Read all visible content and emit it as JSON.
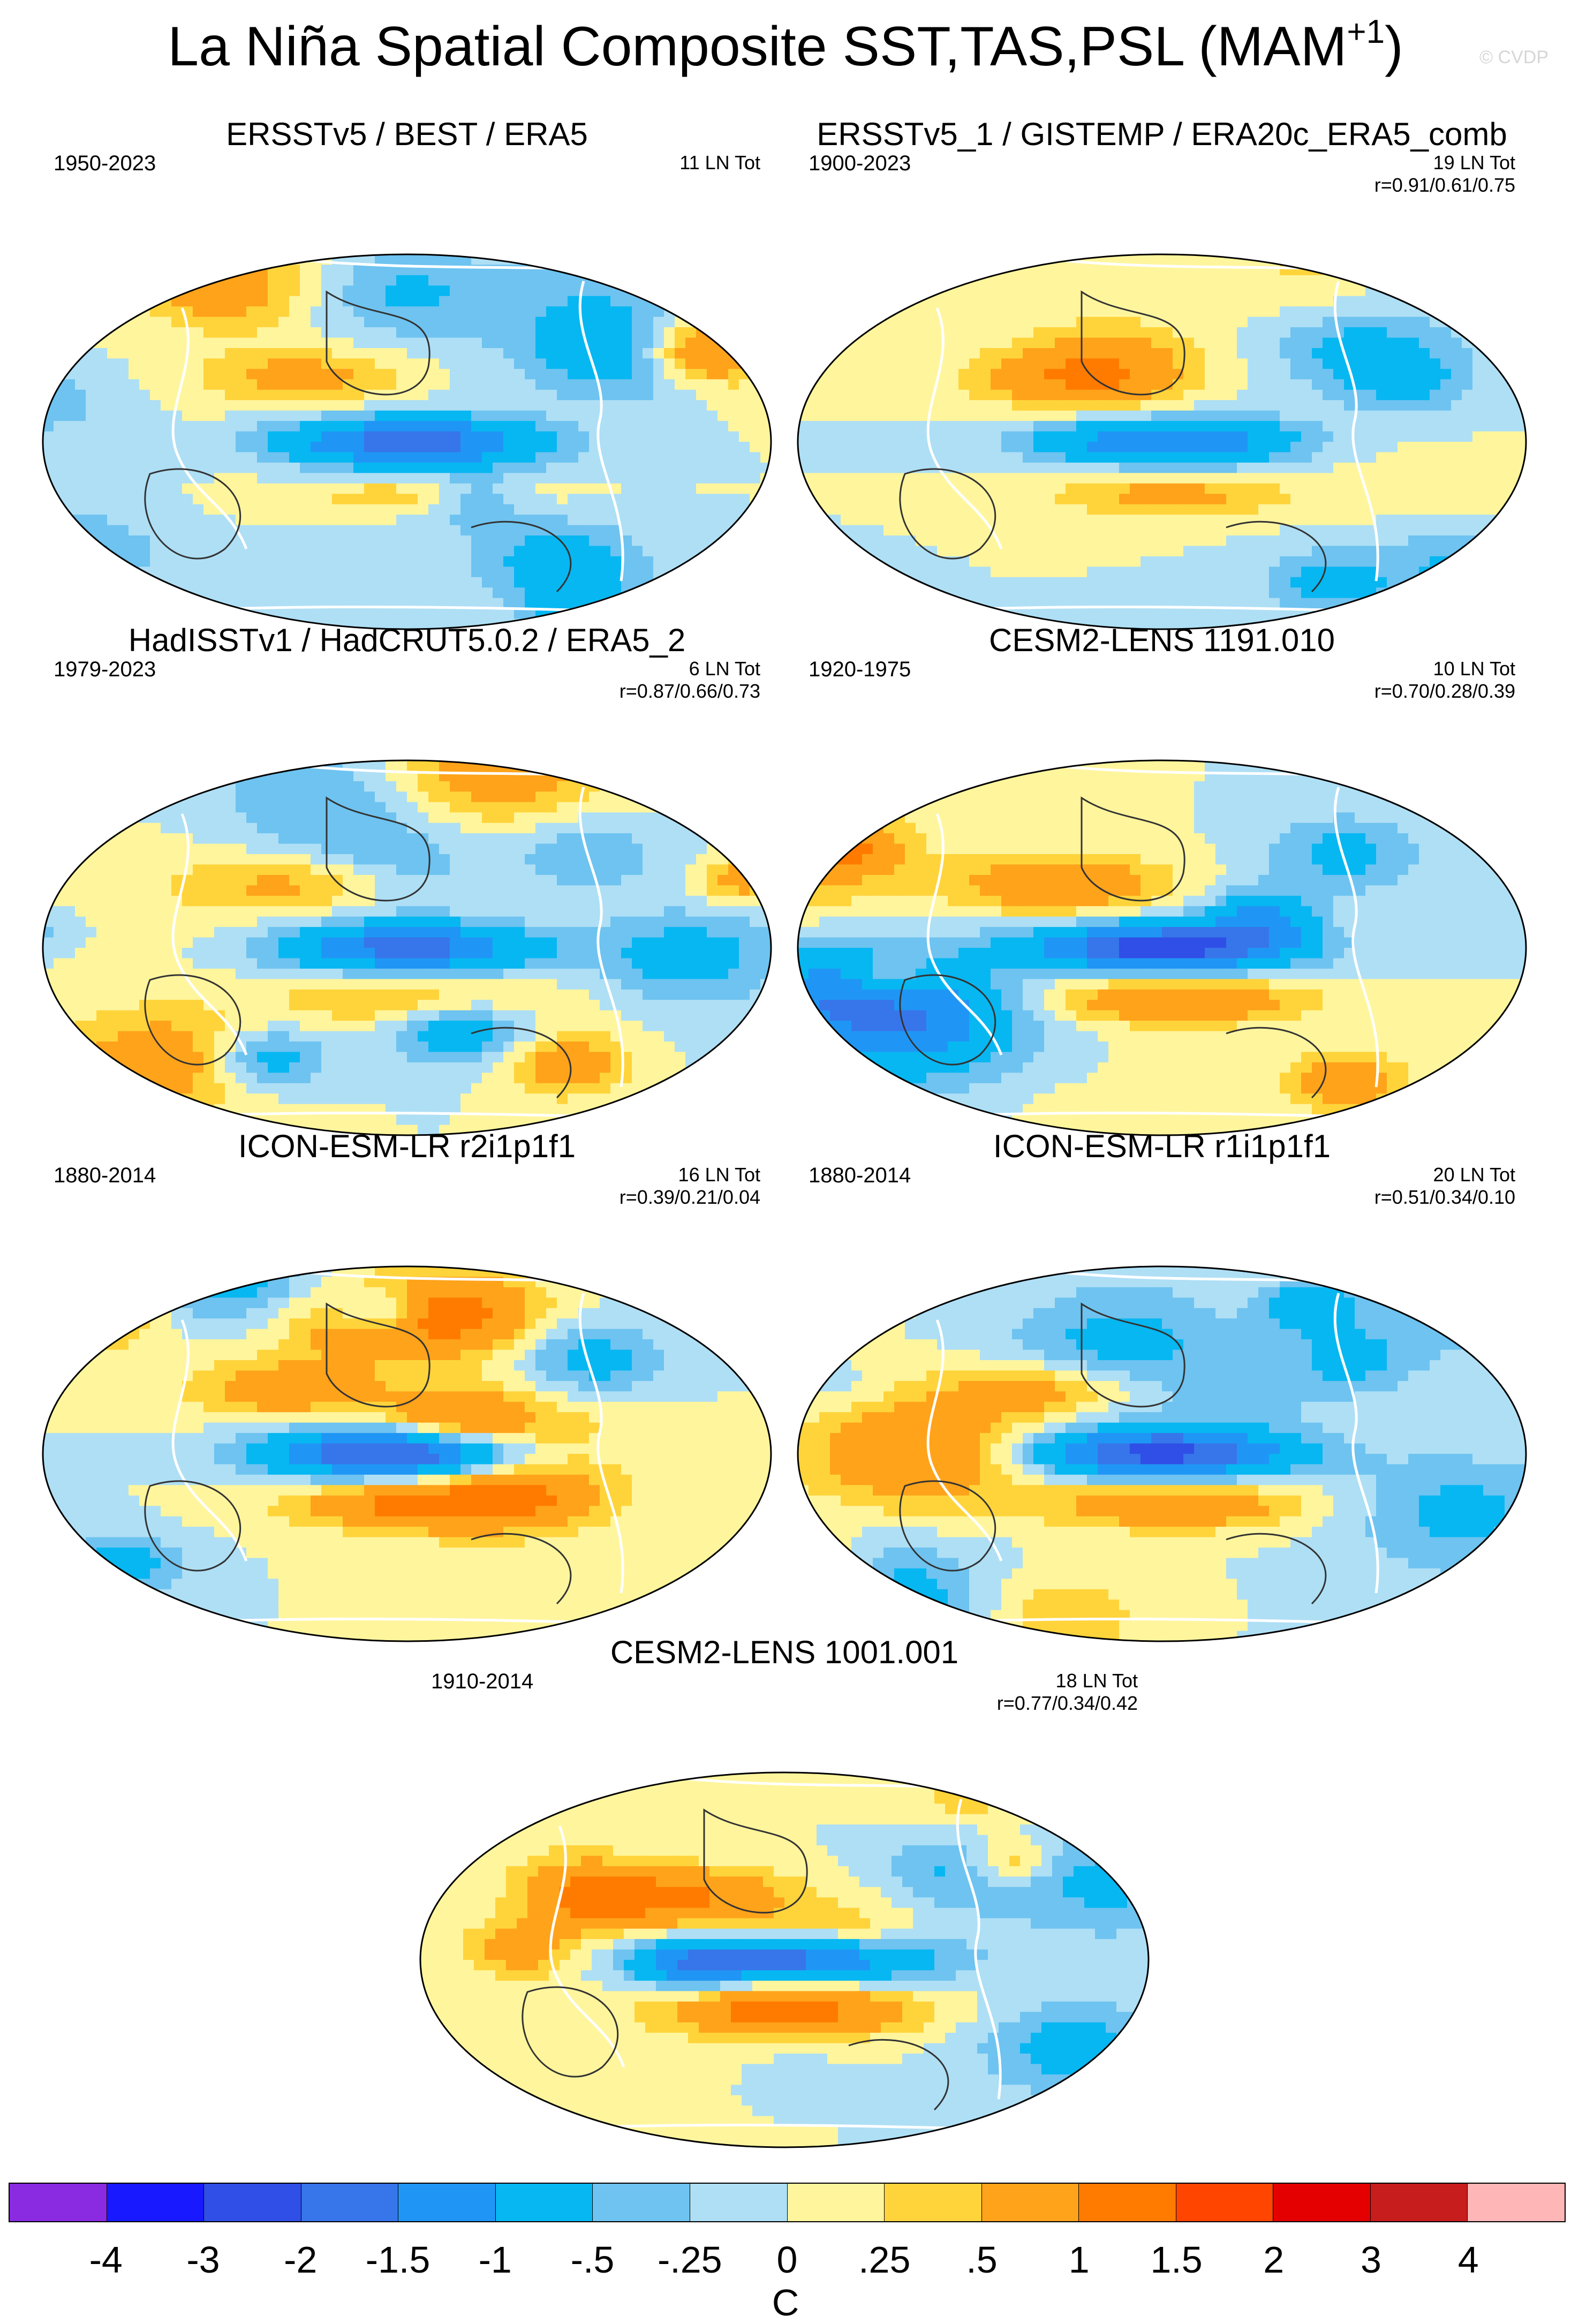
{
  "figure": {
    "title_main": "La Niña Spatial Composite SST,TAS,PSL (MAM",
    "title_sup": "+1",
    "title_close": ")",
    "watermark": "© CVDP"
  },
  "colors": {
    "land_sea_outline": "#ffffff",
    "contour": "#333333"
  },
  "chart_data": [
    {
      "type": "map",
      "title": "ERSSTv5 / BEST / ERA5",
      "period": "1950-2023",
      "count": "11 LN Tot",
      "r": "",
      "style": {
        "seed": 3,
        "strength": 0.75
      }
    },
    {
      "type": "map",
      "title": "ERSSTv5_1 / GISTEMP / ERA20c_ERA5_comb",
      "period": "1900-2023",
      "count": "19 LN Tot",
      "r": "r=0.91/0.61/0.75",
      "style": {
        "seed": 7,
        "strength": 0.7
      }
    },
    {
      "type": "map",
      "title": "HadISSTv1 / HadCRUT5.0.2 / ERA5_2",
      "period": "1979-2023",
      "count": "6 LN Tot",
      "r": "r=0.87/0.66/0.73",
      "style": {
        "seed": 11,
        "strength": 0.8
      }
    },
    {
      "type": "map",
      "title": "CESM2-LENS 1191.010",
      "period": "1920-1975",
      "count": "10 LN Tot",
      "r": "r=0.70/0.28/0.39",
      "style": {
        "seed": 17,
        "strength": 1.1
      }
    },
    {
      "type": "map",
      "title": "ICON-ESM-LR r2i1p1f1",
      "period": "1880-2014",
      "count": "16 LN Tot",
      "r": "r=0.39/0.21/0.04",
      "style": {
        "seed": 23,
        "strength": 1.2
      }
    },
    {
      "type": "map",
      "title": "ICON-ESM-LR r1i1p1f1",
      "period": "1880-2014",
      "count": "20 LN Tot",
      "r": "r=0.51/0.34/0.10",
      "style": {
        "seed": 29,
        "strength": 1.0
      }
    },
    {
      "type": "map",
      "title": "CESM2-LENS 1001.001",
      "period": "1910-2014",
      "count": "18 LN Tot",
      "r": "r=0.77/0.34/0.42",
      "style": {
        "seed": 31,
        "strength": 1.1
      }
    }
  ],
  "colorbar": {
    "colors": [
      "#8a2be2",
      "#1919ff",
      "#2f4fe6",
      "#3775ea",
      "#1f96f5",
      "#07b7f2",
      "#6ec3f0",
      "#aedff5",
      "#fff59d",
      "#ffd43b",
      "#ffa31a",
      "#ff7b00",
      "#ff4500",
      "#e40000",
      "#c81d1d",
      "#ffb6b6"
    ],
    "labels": [
      "-4",
      "-3",
      "-2",
      "-1.5",
      "-1",
      "-.5",
      "-.25",
      "0",
      ".25",
      ".5",
      "1",
      "1.5",
      "2",
      "3",
      "4"
    ],
    "unit": "C"
  }
}
